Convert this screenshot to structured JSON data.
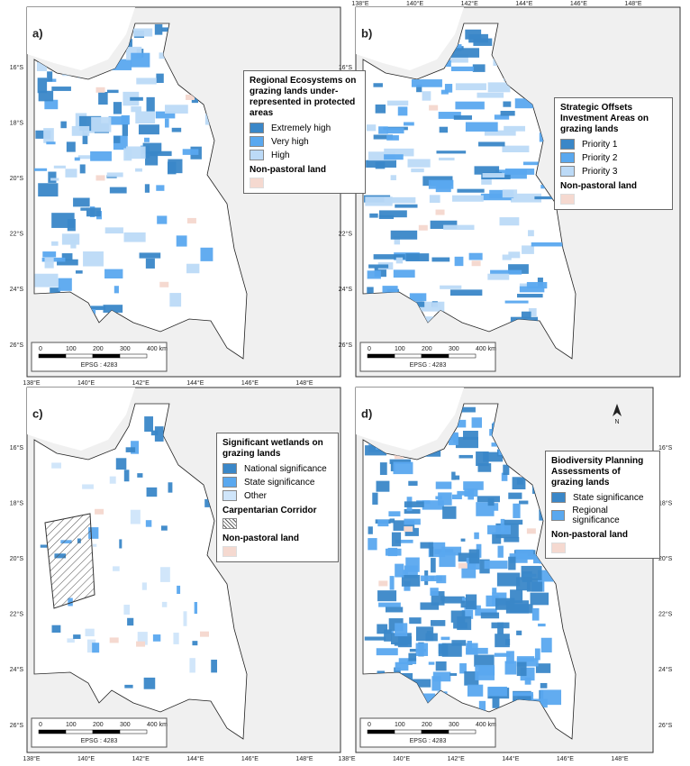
{
  "lat_ticks": [
    "16°S",
    "18°S",
    "20°S",
    "22°S",
    "24°S",
    "26°S"
  ],
  "lon_ticks": [
    "138°E",
    "140°E",
    "142°E",
    "144°E",
    "146°E",
    "148°E"
  ],
  "scale_labels": [
    "0",
    "100",
    "200",
    "300",
    "400 km"
  ],
  "epsg": "EPSG : 4283",
  "panels": [
    {
      "label": "a)",
      "legend": {
        "title": "Regional Ecosystems on grazing lands under-represented in protected areas",
        "items": [
          {
            "label": "Extremely high",
            "color": "#3a87c8"
          },
          {
            "label": "Very high",
            "color": "#5aa8ef"
          },
          {
            "label": "High",
            "color": "#bcdaf7"
          }
        ],
        "non_pastoral": "Non-pastoral land",
        "non_pastoral_color": "#f5d9d0"
      }
    },
    {
      "label": "b)",
      "legend": {
        "title": "Strategic Offsets Investment Areas on grazing lands",
        "items": [
          {
            "label": "Priority 1",
            "color": "#3a87c8"
          },
          {
            "label": "Priority 2",
            "color": "#5aa8ef"
          },
          {
            "label": "Priority 3",
            "color": "#bcdaf7"
          }
        ],
        "non_pastoral": "Non-pastoral land",
        "non_pastoral_color": "#f5d9d0"
      }
    },
    {
      "label": "c)",
      "legend": {
        "title": "Significant wetlands on grazing lands",
        "items": [
          {
            "label": "National significance",
            "color": "#3a87c8"
          },
          {
            "label": "State significance",
            "color": "#5aa8ef"
          },
          {
            "label": "Other",
            "color": "#cfe5fa"
          }
        ],
        "corridor": "Carpentarian Corridor",
        "non_pastoral": "Non-pastoral land",
        "non_pastoral_color": "#f5d9d0"
      }
    },
    {
      "label": "d)",
      "north": "N",
      "legend": {
        "title": "Biodiversity Planning Assessments of grazing lands",
        "items": [
          {
            "label": "State significance",
            "color": "#3a87c8"
          },
          {
            "label": "Regional significance",
            "color": "#5aa8ef"
          }
        ],
        "non_pastoral": "Non-pastoral land",
        "non_pastoral_color": "#f5d9d0"
      }
    }
  ]
}
